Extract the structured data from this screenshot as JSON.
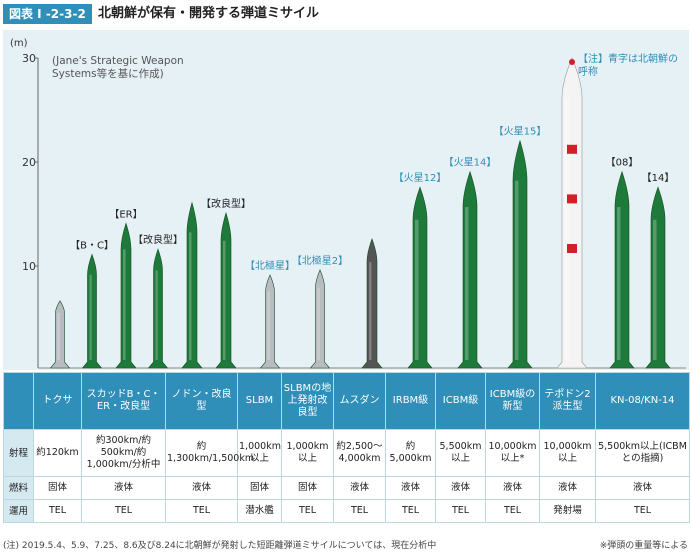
{
  "header": {
    "badge": "図表 I -2-3-2",
    "title": "北朝鮮が保有・開発する弾道ミサイル"
  },
  "colors": {
    "accent": "#2f8fb8",
    "panel": "#e6f1f5",
    "missile_green": "#1e7a3a",
    "missile_gray": "#b8bcc0",
    "missile_dark": "#555555",
    "label_blue": "#2f8fb8"
  },
  "chart_data": {
    "type": "bar",
    "ylabel": "(m)",
    "ylim": [
      0,
      30
    ],
    "yticks": [
      "10",
      "20",
      "30"
    ],
    "source_note": "(Jane's Strategic Weapon Systems等を基に作成)",
    "annotation": "【注】青字は北朝鮮の呼称",
    "missiles": [
      {
        "label": "",
        "label_color": "dark",
        "height": 6.5,
        "color": "gray"
      },
      {
        "label": "【B・C】",
        "label_color": "dark",
        "height": 11,
        "color": "green"
      },
      {
        "label": "【ER】",
        "label_color": "dark",
        "height": 14,
        "color": "green"
      },
      {
        "label": "【改良型】",
        "label_color": "dark",
        "height": 11.5,
        "color": "green"
      },
      {
        "label": "",
        "label_color": "dark",
        "height": 16,
        "color": "green"
      },
      {
        "label": "【改良型】",
        "label_color": "dark",
        "height": 15,
        "color": "green"
      },
      {
        "label": "【北極星】",
        "label_color": "blue",
        "height": 9,
        "color": "gray"
      },
      {
        "label": "【北極星2】",
        "label_color": "blue",
        "height": 9.5,
        "color": "gray"
      },
      {
        "label": "",
        "label_color": "dark",
        "height": 12.5,
        "color": "dark"
      },
      {
        "label": "【火星12】",
        "label_color": "blue",
        "height": 17.5,
        "color": "green"
      },
      {
        "label": "【火星14】",
        "label_color": "blue",
        "height": 19,
        "color": "green"
      },
      {
        "label": "【火星15】",
        "label_color": "blue",
        "height": 22,
        "color": "green"
      },
      {
        "label": "",
        "label_color": "dark",
        "height": 30,
        "color": "white"
      },
      {
        "label": "【08】",
        "label_color": "dark",
        "height": 19,
        "color": "green"
      },
      {
        "label": "【14】",
        "label_color": "dark",
        "height": 17.5,
        "color": "green"
      }
    ]
  },
  "table": {
    "columns": [
      "トクサ",
      "スカッドB・C・ER・改良型",
      "ノドン・改良型",
      "SLBM",
      "SLBMの地上発射改良型",
      "ムスダン",
      "IRBM級",
      "ICBM級",
      "ICBM級の新型",
      "テポドン2派生型",
      "KN-08/KN-14"
    ],
    "rows": [
      {
        "head": "射程",
        "cells": [
          "約120km",
          "約300km/約500km/約1,000km/分析中",
          "約1,300km/1,500km",
          "1,000km以上",
          "1,000km以上",
          "約2,500～4,000km",
          "約5,000km",
          "5,500km以上",
          "10,000km以上*",
          "10,000km以上",
          "5,500km以上(ICBMとの指摘)"
        ]
      },
      {
        "head": "燃料",
        "cells": [
          "固体",
          "液体",
          "液体",
          "固体",
          "固体",
          "液体",
          "液体",
          "液体",
          "液体",
          "液体",
          "液体"
        ]
      },
      {
        "head": "運用",
        "cells": [
          "TEL",
          "TEL",
          "TEL",
          "潜水艦",
          "TEL",
          "TEL",
          "TEL",
          "TEL",
          "TEL",
          "発射場",
          "TEL"
        ]
      }
    ]
  },
  "footnote": "(注) 2019.5.4、5.9、7.25、8.6及び8.24に北朝鮮が発射した短距離弾道ミサイルについては、現在分析中",
  "footnote_right": "※弾頭の重量等による"
}
